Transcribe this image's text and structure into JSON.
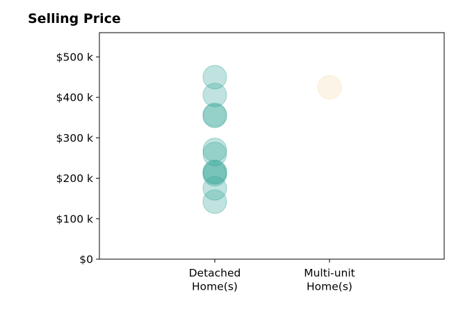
{
  "chart_data": {
    "type": "scatter",
    "title": "Selling Price",
    "xlabel": "",
    "ylabel": "",
    "ylim": [
      0,
      560000
    ],
    "y_ticks": [
      {
        "value": 0,
        "label": "$0"
      },
      {
        "value": 100000,
        "label": "$100 k"
      },
      {
        "value": 200000,
        "label": "$200 k"
      },
      {
        "value": 300000,
        "label": "$300 k"
      },
      {
        "value": 400000,
        "label": "$400 k"
      },
      {
        "value": 500000,
        "label": "$500 k"
      }
    ],
    "categories": [
      {
        "lines": [
          "Detached",
          "Home(s)"
        ]
      },
      {
        "lines": [
          "Multi-unit",
          "Home(s)"
        ]
      }
    ],
    "grid": false,
    "legend": "none",
    "series": [
      {
        "category": 0,
        "color": "#3aa99a",
        "values": [
          450000,
          406000,
          357000,
          354000,
          270000,
          260000,
          216000,
          214000,
          210000,
          175000,
          142000
        ]
      },
      {
        "category": 1,
        "color": "#f5ddb0",
        "values": [
          425000
        ]
      }
    ]
  }
}
